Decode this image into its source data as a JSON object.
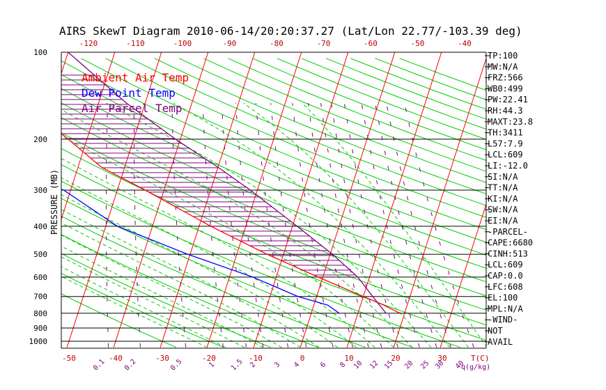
{
  "chart_data": {
    "type": "line",
    "title": "AIRS SkewT Diagram 2010-06-14/20:20:37.27 (Lat/Lon 22.77/-103.39 deg)",
    "ylabel": "PRESSURE (MB)",
    "xlabel": "T(C)",
    "mixing_label": "q(g/kg)",
    "y_scale": "log",
    "ylim": [
      1000,
      100
    ],
    "xlim_bottom": [
      -50,
      40
    ],
    "pressure_ticks": [
      100,
      200,
      300,
      400,
      500,
      600,
      700,
      800,
      900,
      1000
    ],
    "temp_ticks_bottom": [
      -50,
      -40,
      -30,
      -20,
      -10,
      0,
      10,
      20,
      30
    ],
    "temp_ticks_top": [
      -120,
      -110,
      -100,
      -90,
      -80,
      -70,
      -60,
      -50,
      -40
    ],
    "mixing_ratio_ticks": [
      "0.1",
      "0.2",
      "0.5",
      "1",
      "1.5",
      "2",
      "3",
      "4",
      "6",
      "8",
      "10",
      "12",
      "15",
      "20",
      "25",
      "30",
      "40"
    ],
    "legend": [
      {
        "label": "Ambient Air Temp",
        "color": "#ff0000"
      },
      {
        "label": "Dew Point Temp",
        "color": "#0000ff"
      },
      {
        "label": "Air Parcel Temp",
        "color": "#800080"
      }
    ],
    "series": [
      {
        "name": "Ambient Air Temp",
        "points": [
          [
            100,
            -80.5
          ],
          [
            130,
            -82.5
          ],
          [
            150,
            -76.5
          ],
          [
            200,
            -64
          ],
          [
            250,
            -55
          ],
          [
            300,
            -44
          ],
          [
            400,
            -27.5
          ],
          [
            500,
            -13.5
          ],
          [
            600,
            -1
          ],
          [
            700,
            10
          ],
          [
            750,
            15
          ],
          [
            800,
            19
          ]
        ]
      },
      {
        "name": "Dew Point Temp",
        "points": [
          [
            100,
            -108
          ],
          [
            150,
            -105
          ],
          [
            200,
            -91
          ],
          [
            250,
            -75.5
          ],
          [
            300,
            -61.5
          ],
          [
            400,
            -47.5
          ],
          [
            500,
            -30.5
          ],
          [
            600,
            -15
          ],
          [
            700,
            -4
          ],
          [
            750,
            3
          ],
          [
            800,
            6
          ]
        ]
      },
      {
        "name": "Air Parcel Temp",
        "points": [
          [
            100,
            -70
          ],
          [
            150,
            -54
          ],
          [
            200,
            -41
          ],
          [
            250,
            -30
          ],
          [
            300,
            -21.5
          ],
          [
            400,
            -9
          ],
          [
            500,
            0.5
          ],
          [
            600,
            7.5
          ],
          [
            700,
            12
          ],
          [
            800,
            16
          ]
        ]
      }
    ],
    "indices": [
      "TP:100",
      "MW:N/A",
      "FRZ:566",
      "WB0:499",
      "PW:22.41",
      "RH:44.3",
      "MAXT:23.8",
      "TH:3411",
      "L57:7.9",
      "LCL:609",
      "LI:-12.0",
      "SI:N/A",
      "TT:N/A",
      "KI:N/A",
      "SW:N/A",
      "EI:N/A",
      "-PARCEL-",
      "CAPE:6680",
      "CINH:513",
      "LCL:609",
      "CAP:0.0",
      "LFC:608",
      "EL:100",
      "MPL:N/A",
      "-WIND-",
      "NOT",
      "AVAIL"
    ],
    "grid": true,
    "legend_position": "top-left"
  }
}
